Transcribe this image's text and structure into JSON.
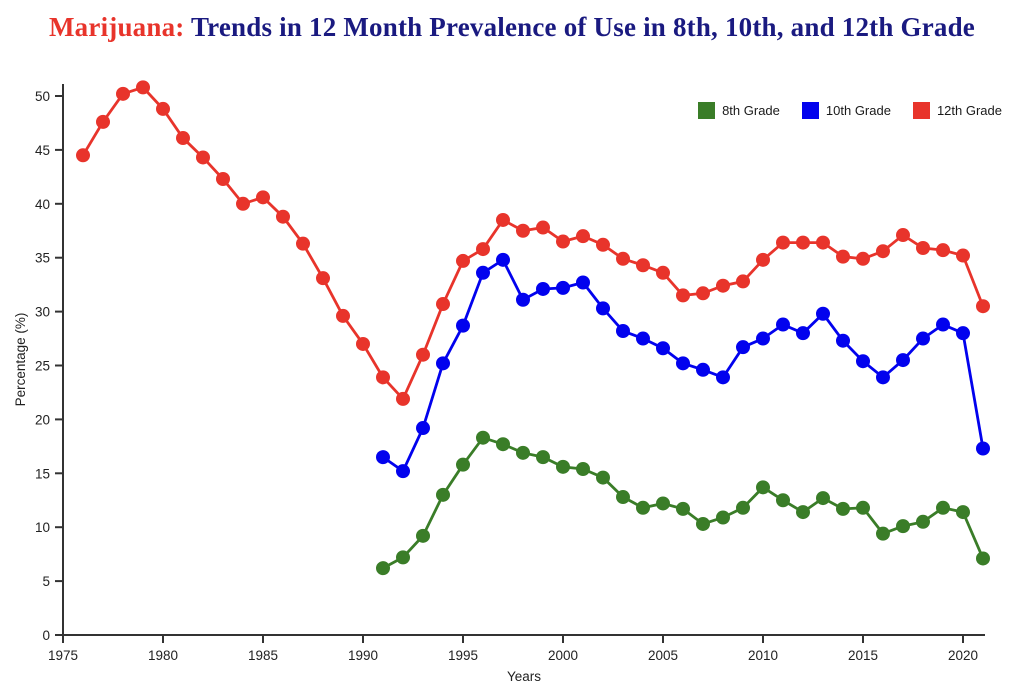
{
  "title": {
    "prefix": "Marijuana:",
    "main": "Trends in 12 Month Prevalence of Use in 8th, 10th, and 12th Grade"
  },
  "colors": {
    "title_prefix": "#e8342b",
    "title_main": "#1a1a80",
    "axis": "#333333",
    "tick_label": "#222222",
    "background": "#ffffff"
  },
  "chart_data": {
    "type": "line",
    "title": "Marijuana: Trends in 12 Month Prevalence of Use in 8th, 10th, and 12th Grade",
    "xlabel": "Years",
    "ylabel": "Percentage (%)",
    "xlim": [
      1975,
      2022
    ],
    "ylim": [
      0,
      51
    ],
    "x_ticks": [
      1975,
      1980,
      1985,
      1990,
      1995,
      2000,
      2005,
      2010,
      2015,
      2020
    ],
    "y_ticks": [
      0,
      5,
      10,
      15,
      20,
      25,
      30,
      35,
      40,
      45,
      50
    ],
    "grid": false,
    "legend_position": "top-right",
    "marker": "circle",
    "series": [
      {
        "name": "8th Grade",
        "color": "#3a7d28",
        "x": [
          1991,
          1992,
          1993,
          1994,
          1995,
          1996,
          1997,
          1998,
          1999,
          2000,
          2001,
          2002,
          2003,
          2004,
          2005,
          2006,
          2007,
          2008,
          2009,
          2010,
          2011,
          2012,
          2013,
          2014,
          2015,
          2016,
          2017,
          2018,
          2019,
          2020,
          2021
        ],
        "values": [
          6.2,
          7.2,
          9.2,
          13.0,
          15.8,
          18.3,
          17.7,
          16.9,
          16.5,
          15.6,
          15.4,
          14.6,
          12.8,
          11.8,
          12.2,
          11.7,
          10.3,
          10.9,
          11.8,
          13.7,
          12.5,
          11.4,
          12.7,
          11.7,
          11.8,
          9.4,
          10.1,
          10.5,
          11.8,
          11.4,
          7.1
        ]
      },
      {
        "name": "10th Grade",
        "color": "#0202ee",
        "x": [
          1991,
          1992,
          1993,
          1994,
          1995,
          1996,
          1997,
          1998,
          1999,
          2000,
          2001,
          2002,
          2003,
          2004,
          2005,
          2006,
          2007,
          2008,
          2009,
          2010,
          2011,
          2012,
          2013,
          2014,
          2015,
          2016,
          2017,
          2018,
          2019,
          2020,
          2021
        ],
        "values": [
          16.5,
          15.2,
          19.2,
          25.2,
          28.7,
          33.6,
          34.8,
          31.1,
          32.1,
          32.2,
          32.7,
          30.3,
          28.2,
          27.5,
          26.6,
          25.2,
          24.6,
          23.9,
          26.7,
          27.5,
          28.8,
          28.0,
          29.8,
          27.3,
          25.4,
          23.9,
          25.5,
          27.5,
          28.8,
          28.0,
          17.3
        ]
      },
      {
        "name": "12th Grade",
        "color": "#e8342b",
        "x": [
          1976,
          1977,
          1978,
          1979,
          1980,
          1981,
          1982,
          1983,
          1984,
          1985,
          1986,
          1987,
          1988,
          1989,
          1990,
          1991,
          1992,
          1993,
          1994,
          1995,
          1996,
          1997,
          1998,
          1999,
          2000,
          2001,
          2002,
          2003,
          2004,
          2005,
          2006,
          2007,
          2008,
          2009,
          2010,
          2011,
          2012,
          2013,
          2014,
          2015,
          2016,
          2017,
          2018,
          2019,
          2020,
          2021
        ],
        "values": [
          44.5,
          47.6,
          50.2,
          50.8,
          48.8,
          46.1,
          44.3,
          42.3,
          40.0,
          40.6,
          38.8,
          36.3,
          33.1,
          29.6,
          27.0,
          23.9,
          21.9,
          26.0,
          30.7,
          34.7,
          35.8,
          38.5,
          37.5,
          37.8,
          36.5,
          37.0,
          36.2,
          34.9,
          34.3,
          33.6,
          31.5,
          31.7,
          32.4,
          32.8,
          34.8,
          36.4,
          36.4,
          36.4,
          35.1,
          34.9,
          35.6,
          37.1,
          35.9,
          35.7,
          35.2,
          30.5
        ]
      }
    ]
  }
}
